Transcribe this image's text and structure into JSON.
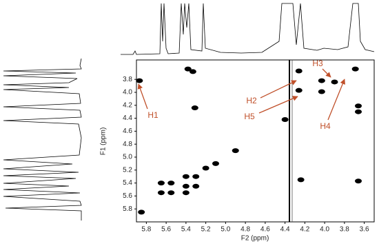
{
  "chart_data": {
    "type": "scatter",
    "x_label": "F2 (ppm)",
    "y_label": "F1 (ppm)",
    "xlim": [
      5.9,
      3.5
    ],
    "ylim": [
      3.5,
      6.0
    ],
    "xticks": [
      5.8,
      5.6,
      5.4,
      5.2,
      {
        "value": 5,
        "label": "5.0"
      },
      4.8,
      4.6,
      4.4,
      4.2,
      {
        "value": 4,
        "label": "4.0"
      },
      3.8,
      3.6
    ],
    "yticks": [
      3.8,
      {
        "value": 4,
        "label": "4.0"
      },
      4.2,
      4.4,
      4.6,
      4.8,
      {
        "value": 5,
        "label": "5.0"
      },
      5.2,
      5.4,
      5.6,
      5.8
    ],
    "series": [
      {
        "color": "#000000",
        "x": [
          5.87,
          5.38,
          5.33,
          5.31,
          5.85,
          5.65,
          5.55,
          5.55,
          5.65,
          5.4,
          5.4,
          5.4,
          5.3,
          5.3,
          5.2,
          5.1,
          4.9,
          4.4,
          4.26,
          4.26,
          4.03,
          4.03,
          3.9,
          3.69,
          3.66,
          3.66,
          3.66,
          4.24
        ],
        "y": [
          3.82,
          3.64,
          3.68,
          4.24,
          5.85,
          5.4,
          5.4,
          5.55,
          5.55,
          5.3,
          5.45,
          5.55,
          5.3,
          5.45,
          5.17,
          5.1,
          4.9,
          4.42,
          3.67,
          3.97,
          3.82,
          3.99,
          3.84,
          3.64,
          4.21,
          4.3,
          5.37,
          5.35
        ]
      }
    ],
    "annotations": [
      "H1",
      "H2",
      "H3",
      "H4",
      "H5"
    ],
    "annotation_color": "#c0502a"
  }
}
